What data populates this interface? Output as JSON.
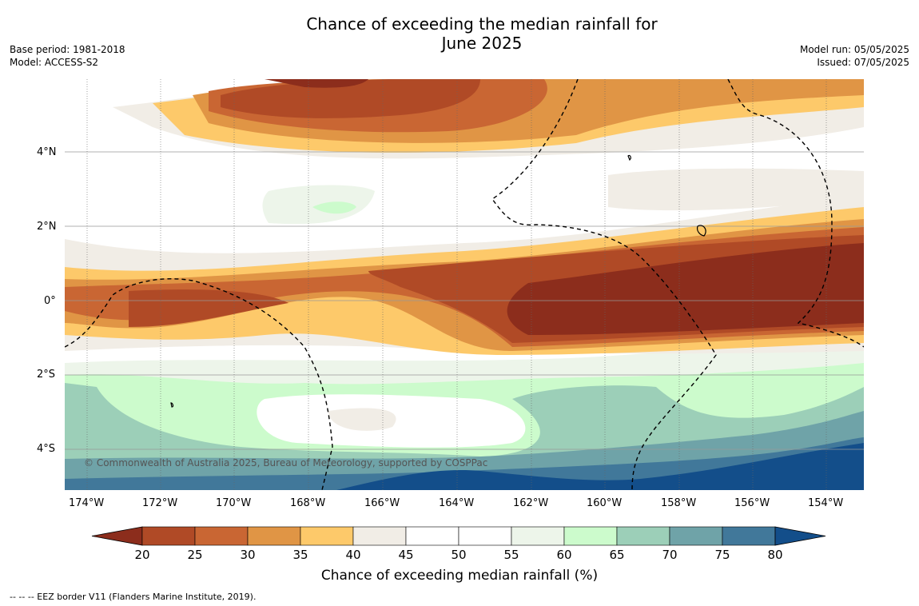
{
  "title_line1": "Chance of exceeding the median rainfall for",
  "title_line2": "June 2025",
  "meta_left": [
    "Base period: 1981-2018",
    "Model: ACCESS-S2"
  ],
  "meta_right": [
    "Model run: 05/05/2025",
    "Issued: 07/05/2025"
  ],
  "copyright": "© Commonwealth of Australia 2025, Bureau of Meteorology, supported by COSPPac",
  "footnote": "-- -- -- EEZ border V11 (Flanders Marine Institute, 2019).",
  "lon_ticks": [
    "174°W",
    "172°W",
    "170°W",
    "168°W",
    "166°W",
    "164°W",
    "162°W",
    "160°W",
    "158°W",
    "156°W",
    "154°W"
  ],
  "lat_ticks": [
    "4°N",
    "2°N",
    "0°",
    "2°S",
    "4°S"
  ],
  "colorbar": {
    "title": "Chance of exceeding median rainfall (%)",
    "labels": [
      "20",
      "25",
      "30",
      "35",
      "40",
      "45",
      "50",
      "55",
      "60",
      "65",
      "70",
      "75",
      "80"
    ],
    "colors": [
      "#8c2d1c",
      "#b04a26",
      "#c96633",
      "#e09545",
      "#fdc96a",
      "#f1ede6",
      "#ffffff",
      "#ffffff",
      "#edf5ea",
      "#ccfbcc",
      "#9ccfb8",
      "#6fa3a8",
      "#41789a",
      "#134e8a"
    ]
  }
}
